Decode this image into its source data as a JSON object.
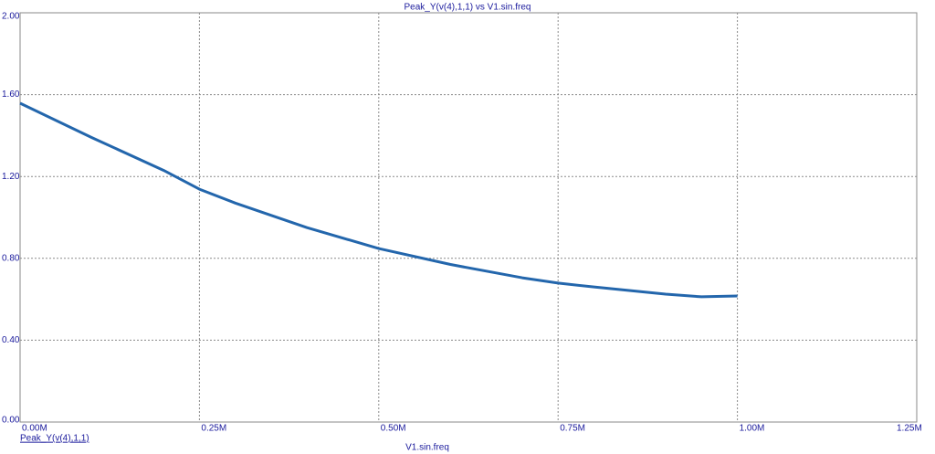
{
  "chart_data": {
    "type": "line",
    "title": "Peak_Y(v(4),1,1) vs V1.sin.freq",
    "x_label": "V1.sin.freq",
    "x": [
      0,
      100000,
      200000,
      250000,
      300000,
      400000,
      500000,
      600000,
      700000,
      750000,
      800000,
      900000,
      950000,
      1000000
    ],
    "series": [
      {
        "name": "Peak_Y(v(4),1,1)",
        "color": "#2366ac",
        "values": [
          1.558,
          1.39,
          1.23,
          1.138,
          1.07,
          0.95,
          0.848,
          0.77,
          0.705,
          0.679,
          0.66,
          0.625,
          0.612,
          0.616
        ]
      }
    ],
    "xlim": [
      0,
      1250000
    ],
    "xticks": [
      {
        "value": 0,
        "label": "0.00M"
      },
      {
        "value": 250000,
        "label": "0.25M"
      },
      {
        "value": 500000,
        "label": "0.50M"
      },
      {
        "value": 750000,
        "label": "0.75M"
      },
      {
        "value": 1000000,
        "label": "1.00M"
      },
      {
        "value": 1250000,
        "label": "1.25M"
      }
    ],
    "ylim": [
      0,
      2
    ],
    "yticks": [
      {
        "value": 0,
        "label": "0.00"
      },
      {
        "value": 0.4,
        "label": "0.40"
      },
      {
        "value": 0.8,
        "label": "0.80"
      },
      {
        "value": 1.2,
        "label": "1.20"
      },
      {
        "value": 1.6,
        "label": "1.60"
      },
      {
        "value": 2,
        "label": "2.00"
      }
    ],
    "grid": true
  }
}
